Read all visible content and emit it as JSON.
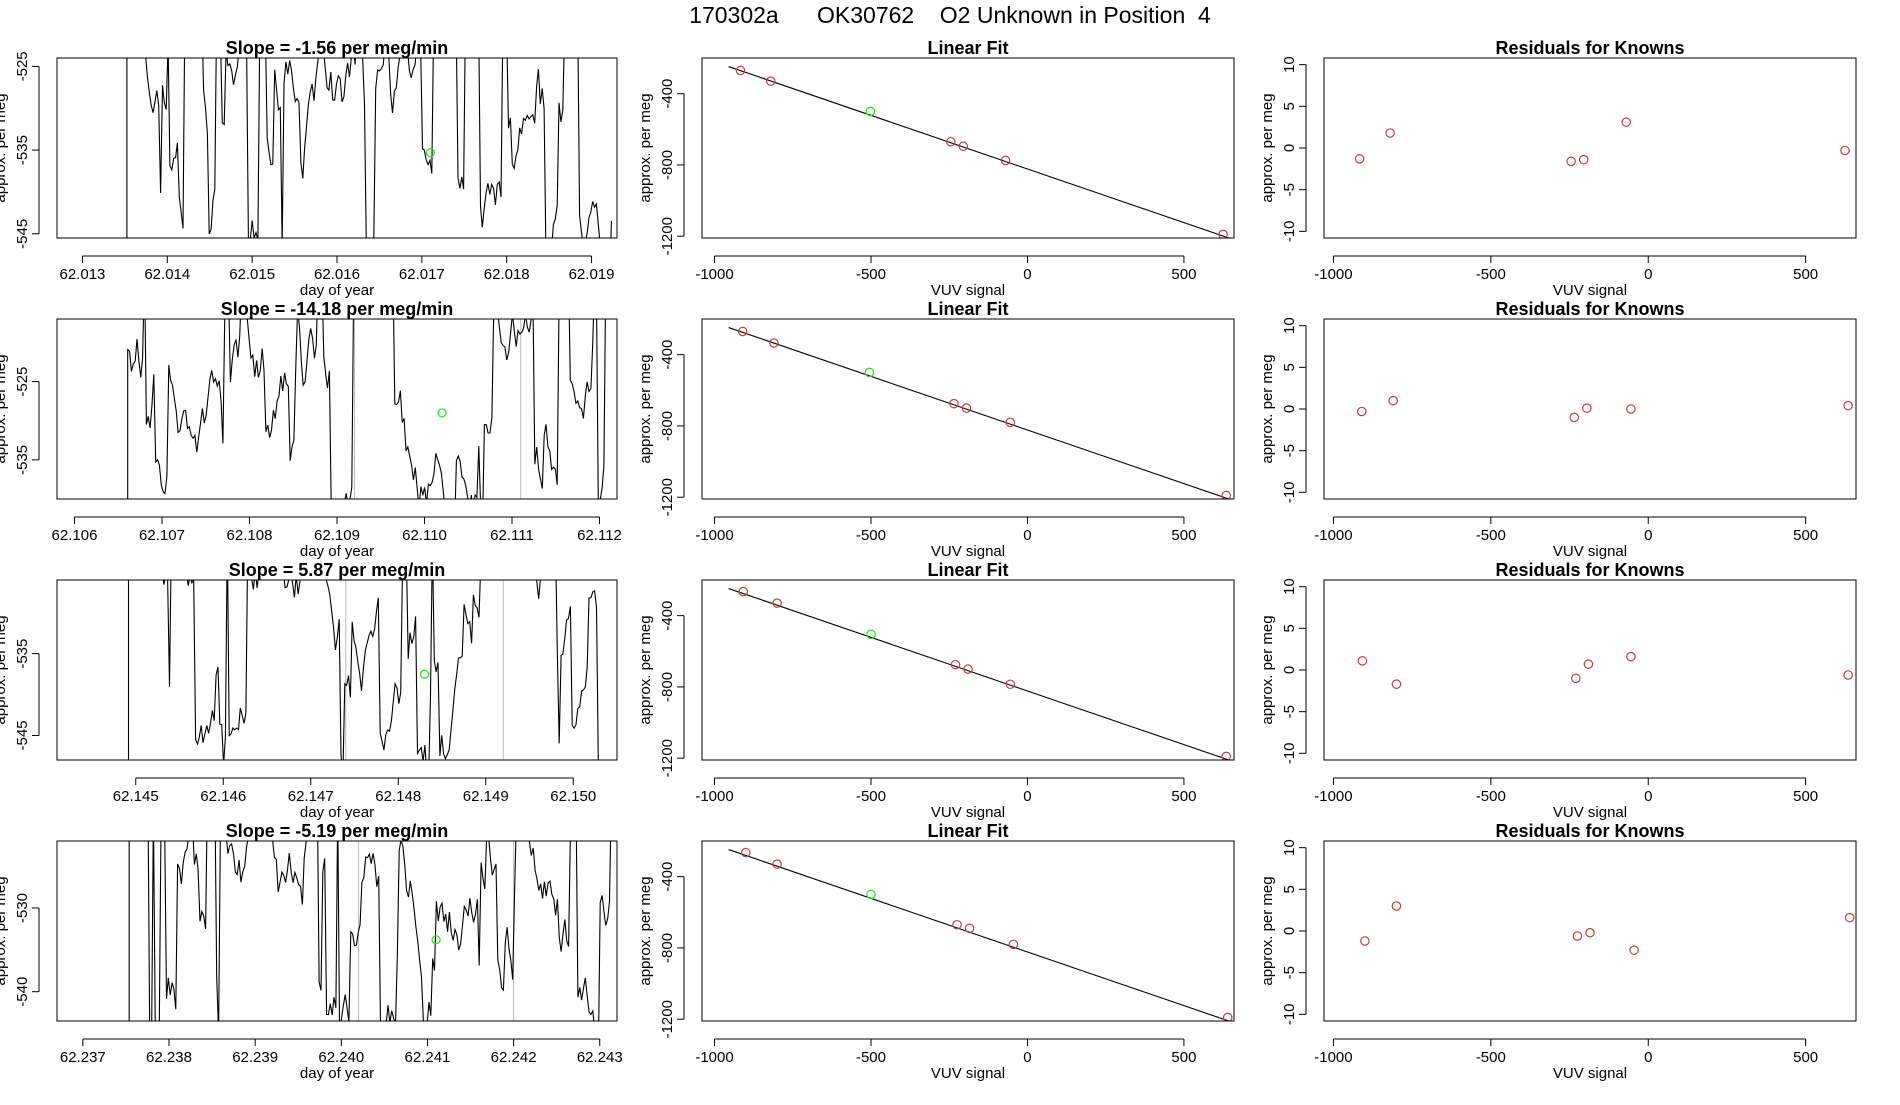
{
  "page_title": "170302a      OK30762    O2 Unknown in Position  4",
  "colors": {
    "trace": "#000000",
    "unknown": "#22dd22",
    "known": "#c04040",
    "frame": "#000000",
    "vline": "#bbbbbb"
  },
  "chart_data": [
    {
      "type": "line",
      "title": "Slope =  -1.56  per meg/min",
      "xlabel": "day of year",
      "ylabel": "approx. per meg",
      "xlim": [
        62.0127,
        62.0193
      ],
      "ylim": [
        -545.5,
        -524.0
      ],
      "xticks": [
        "62.013",
        "62.014",
        "62.015",
        "62.016",
        "62.017",
        "62.018",
        "62.019"
      ],
      "yticks": [
        "-545",
        "-535",
        "-525"
      ],
      "marker": {
        "x": 62.0171,
        "y": -535.3,
        "color": "green"
      },
      "vlines": []
    },
    {
      "type": "line",
      "title": "Slope =  -14.18  per meg/min",
      "xlabel": "day of year",
      "ylabel": "approx. per meg",
      "xlim": [
        62.1058,
        62.1122
      ],
      "ylim": [
        -540.0,
        -517.0
      ],
      "xticks": [
        "62.106",
        "62.107",
        "62.108",
        "62.109",
        "62.110",
        "62.111",
        "62.112"
      ],
      "yticks": [
        "-535",
        "-525"
      ],
      "marker": {
        "x": 62.1102,
        "y": -529.0,
        "color": "green"
      },
      "vlines": [
        62.1092,
        62.1111
      ]
    },
    {
      "type": "line",
      "title": "Slope =  5.87  per meg/min",
      "xlabel": "day of year",
      "ylabel": "approx. per meg",
      "xlim": [
        62.1441,
        62.1505
      ],
      "ylim": [
        -548.0,
        -526.0
      ],
      "xticks": [
        "62.145",
        "62.146",
        "62.147",
        "62.148",
        "62.149",
        "62.150"
      ],
      "yticks": [
        "-545",
        "-535"
      ],
      "marker": {
        "x": 62.1483,
        "y": -537.5,
        "color": "green"
      },
      "vlines": [
        62.1474,
        62.1492
      ]
    },
    {
      "type": "line",
      "title": "Slope =  -5.19  per meg/min",
      "xlabel": "day of year",
      "ylabel": "approx. per meg",
      "xlim": [
        62.2367,
        62.2432
      ],
      "ylim": [
        -543.5,
        -522.0
      ],
      "xticks": [
        "62.237",
        "62.238",
        "62.239",
        "62.240",
        "62.241",
        "62.242",
        "62.243"
      ],
      "yticks": [
        "-540",
        "-530"
      ],
      "marker": {
        "x": 62.2411,
        "y": -533.8,
        "color": "green"
      },
      "vlines": [
        62.2402,
        62.242
      ]
    },
    {
      "type": "scatter",
      "title": "Linear Fit",
      "xlabel": "VUV signal",
      "ylabel": "approx. per meg",
      "xlim": [
        -1040,
        660
      ],
      "ylim": [
        -1210,
        -200
      ],
      "xticks": [
        "-1000",
        "-500",
        "0",
        "500"
      ],
      "yticks": [
        "-1200",
        "-800",
        "-400"
      ],
      "fit_line": [
        [
          -955,
          -248
        ],
        [
          660,
          -1220
        ]
      ],
      "known_points": [
        [
          -917,
          -270
        ],
        [
          -820,
          -330
        ],
        [
          -245,
          -670
        ],
        [
          -205,
          -695
        ],
        [
          -70,
          -775
        ],
        [
          625,
          -1190
        ]
      ],
      "unknown_points": [
        [
          -502,
          -500
        ]
      ]
    },
    {
      "type": "scatter",
      "title": "Linear Fit",
      "xlabel": "VUV signal",
      "ylabel": "approx. per meg",
      "xlim": [
        -1040,
        660
      ],
      "ylim": [
        -1210,
        -200
      ],
      "xticks": [
        "-1000",
        "-500",
        "0",
        "500"
      ],
      "yticks": [
        "-1200",
        "-800",
        "-400"
      ],
      "fit_line": [
        [
          -955,
          -248
        ],
        [
          660,
          -1220
        ]
      ],
      "known_points": [
        [
          -910,
          -270
        ],
        [
          -810,
          -335
        ],
        [
          -235,
          -675
        ],
        [
          -195,
          -700
        ],
        [
          -55,
          -780
        ],
        [
          635,
          -1190
        ]
      ],
      "unknown_points": [
        [
          -505,
          -500
        ]
      ]
    },
    {
      "type": "scatter",
      "title": "Linear Fit",
      "xlabel": "VUV signal",
      "ylabel": "approx. per meg",
      "xlim": [
        -1040,
        660
      ],
      "ylim": [
        -1210,
        -200
      ],
      "xticks": [
        "-1000",
        "-500",
        "0",
        "500"
      ],
      "yticks": [
        "-1200",
        "-800",
        "-400"
      ],
      "fit_line": [
        [
          -955,
          -248
        ],
        [
          660,
          -1220
        ]
      ],
      "known_points": [
        [
          -908,
          -265
        ],
        [
          -800,
          -330
        ],
        [
          -230,
          -675
        ],
        [
          -190,
          -700
        ],
        [
          -55,
          -785
        ],
        [
          635,
          -1190
        ]
      ],
      "unknown_points": [
        [
          -500,
          -505
        ]
      ]
    },
    {
      "type": "scatter",
      "title": "Linear Fit",
      "xlabel": "VUV signal",
      "ylabel": "approx. per meg",
      "xlim": [
        -1040,
        660
      ],
      "ylim": [
        -1210,
        -200
      ],
      "xticks": [
        "-1000",
        "-500",
        "0",
        "500"
      ],
      "yticks": [
        "-1200",
        "-800",
        "-400"
      ],
      "fit_line": [
        [
          -955,
          -248
        ],
        [
          660,
          -1220
        ]
      ],
      "known_points": [
        [
          -900,
          -265
        ],
        [
          -800,
          -330
        ],
        [
          -225,
          -670
        ],
        [
          -185,
          -690
        ],
        [
          -45,
          -780
        ],
        [
          640,
          -1190
        ]
      ],
      "unknown_points": [
        [
          -500,
          -500
        ]
      ]
    },
    {
      "type": "scatter",
      "title": "Residuals for Knowns",
      "xlabel": "VUV signal",
      "ylabel": "approx. per meg",
      "xlim": [
        -1030,
        660
      ],
      "ylim": [
        -10.8,
        10.8
      ],
      "xticks": [
        "-1000",
        "-500",
        "0",
        "500"
      ],
      "yticks": [
        "-10",
        "-5",
        "0",
        "5",
        "10"
      ],
      "known_points": [
        [
          -917,
          -1.3
        ],
        [
          -820,
          1.8
        ],
        [
          -245,
          -1.6
        ],
        [
          -205,
          -1.4
        ],
        [
          -70,
          3.1
        ],
        [
          625,
          -0.3
        ]
      ],
      "unknown_points": []
    },
    {
      "type": "scatter",
      "title": "Residuals for Knowns",
      "xlabel": "VUV signal",
      "ylabel": "approx. per meg",
      "xlim": [
        -1030,
        660
      ],
      "ylim": [
        -10.8,
        10.8
      ],
      "xticks": [
        "-1000",
        "-500",
        "0",
        "500"
      ],
      "yticks": [
        "-10",
        "-5",
        "0",
        "5",
        "10"
      ],
      "known_points": [
        [
          -910,
          -0.3
        ],
        [
          -810,
          1.0
        ],
        [
          -235,
          -1.0
        ],
        [
          -195,
          0.1
        ],
        [
          -55,
          0.0
        ],
        [
          635,
          0.4
        ]
      ],
      "unknown_points": []
    },
    {
      "type": "scatter",
      "title": "Residuals for Knowns",
      "xlabel": "VUV signal",
      "ylabel": "approx. per meg",
      "xlim": [
        -1030,
        660
      ],
      "ylim": [
        -10.8,
        10.8
      ],
      "xticks": [
        "-1000",
        "-500",
        "0",
        "500"
      ],
      "yticks": [
        "-10",
        "-5",
        "0",
        "5",
        "10"
      ],
      "known_points": [
        [
          -908,
          1.1
        ],
        [
          -800,
          -1.7
        ],
        [
          -230,
          -1.0
        ],
        [
          -190,
          0.7
        ],
        [
          -55,
          1.6
        ],
        [
          635,
          -0.6
        ]
      ],
      "unknown_points": []
    },
    {
      "type": "scatter",
      "title": "Residuals for Knowns",
      "xlabel": "VUV signal",
      "ylabel": "approx. per meg",
      "xlim": [
        -1030,
        660
      ],
      "ylim": [
        -10.8,
        10.8
      ],
      "xticks": [
        "-1000",
        "-500",
        "0",
        "500"
      ],
      "yticks": [
        "-10",
        "-5",
        "0",
        "5",
        "10"
      ],
      "known_points": [
        [
          -900,
          -1.2
        ],
        [
          -800,
          3.0
        ],
        [
          -225,
          -0.6
        ],
        [
          -185,
          -0.2
        ],
        [
          -45,
          -2.3
        ],
        [
          640,
          1.6
        ]
      ],
      "unknown_points": []
    }
  ]
}
